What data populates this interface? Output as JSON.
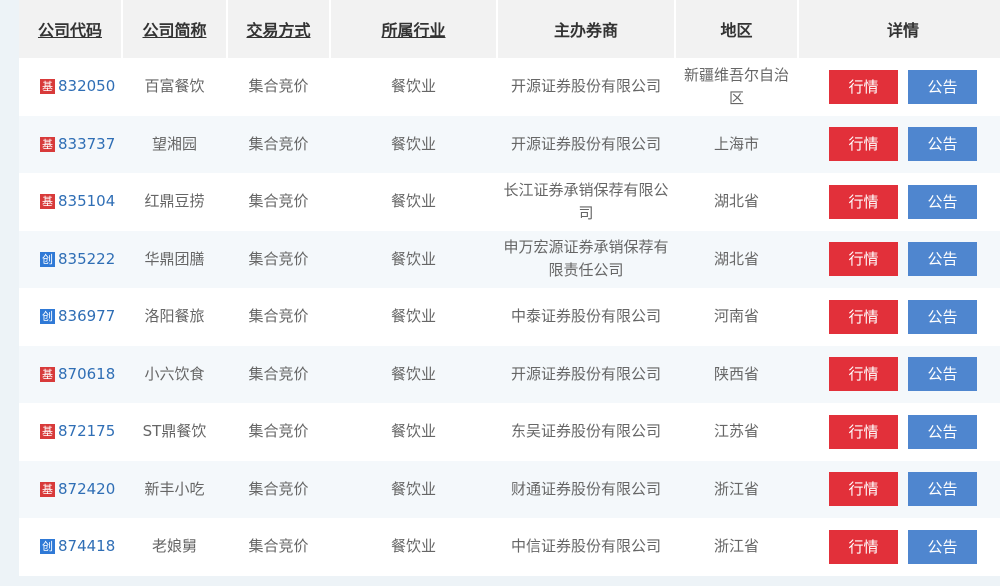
{
  "headers": [
    "公司代码",
    "公司简称",
    "交易方式",
    "所属行业",
    "主办券商",
    "地区",
    "详情"
  ],
  "badge_colors": {
    "基": "#d83a3a",
    "创": "#2f79d6"
  },
  "buttons": {
    "quote": "行情",
    "notice": "公告"
  },
  "rows": [
    {
      "badge": "基",
      "code": "832050",
      "name": "百富餐饮",
      "trade": "集合竞价",
      "industry": "餐饮业",
      "broker": "开源证券股份有限公司",
      "region": "新疆维吾尔自治区"
    },
    {
      "badge": "基",
      "code": "833737",
      "name": "望湘园",
      "trade": "集合竞价",
      "industry": "餐饮业",
      "broker": "开源证券股份有限公司",
      "region": "上海市"
    },
    {
      "badge": "基",
      "code": "835104",
      "name": "红鼎豆捞",
      "trade": "集合竞价",
      "industry": "餐饮业",
      "broker": "长江证券承销保荐有限公司",
      "region": "湖北省"
    },
    {
      "badge": "创",
      "code": "835222",
      "name": "华鼎团膳",
      "trade": "集合竞价",
      "industry": "餐饮业",
      "broker": "申万宏源证券承销保荐有限责任公司",
      "region": "湖北省"
    },
    {
      "badge": "创",
      "code": "836977",
      "name": "洛阳餐旅",
      "trade": "集合竞价",
      "industry": "餐饮业",
      "broker": "中泰证券股份有限公司",
      "region": "河南省"
    },
    {
      "badge": "基",
      "code": "870618",
      "name": "小六饮食",
      "trade": "集合竞价",
      "industry": "餐饮业",
      "broker": "开源证券股份有限公司",
      "region": "陕西省"
    },
    {
      "badge": "基",
      "code": "872175",
      "name": "ST鼎餐饮",
      "trade": "集合竞价",
      "industry": "餐饮业",
      "broker": "东吴证券股份有限公司",
      "region": "江苏省"
    },
    {
      "badge": "基",
      "code": "872420",
      "name": "新丰小吃",
      "trade": "集合竞价",
      "industry": "餐饮业",
      "broker": "财通证券股份有限公司",
      "region": "浙江省"
    },
    {
      "badge": "创",
      "code": "874418",
      "name": "老娘舅",
      "trade": "集合竞价",
      "industry": "餐饮业",
      "broker": "中信证券股份有限公司",
      "region": "浙江省"
    }
  ]
}
